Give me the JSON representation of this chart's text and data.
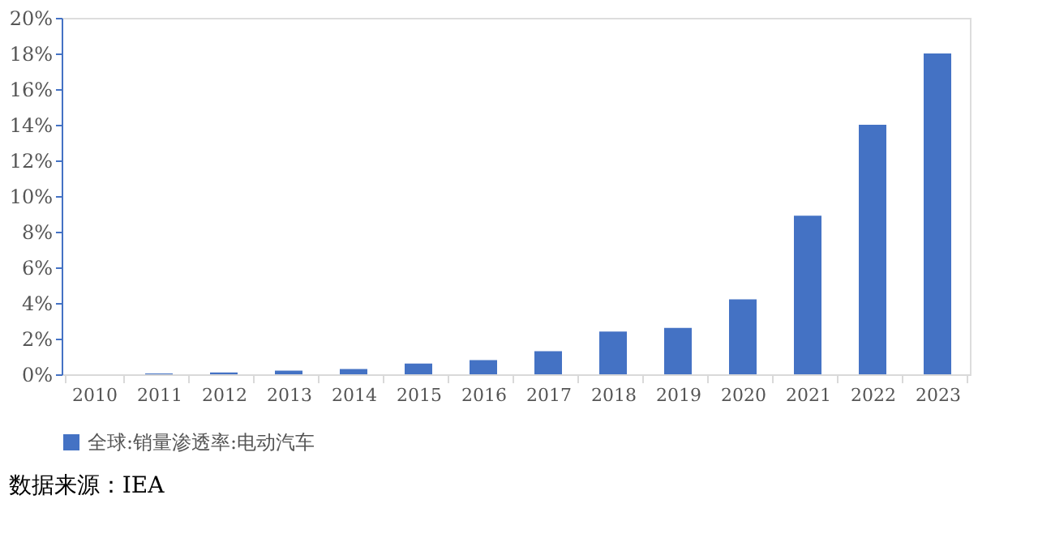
{
  "chart_data": {
    "type": "bar",
    "categories": [
      "2010",
      "2011",
      "2012",
      "2013",
      "2014",
      "2015",
      "2016",
      "2017",
      "2018",
      "2019",
      "2020",
      "2021",
      "2022",
      "2023"
    ],
    "series": [
      {
        "name": "全球:销量渗透率:电动汽车",
        "color": "#4472c4",
        "values": [
          0,
          0.05,
          0.1,
          0.2,
          0.3,
          0.6,
          0.8,
          1.3,
          2.4,
          2.6,
          4.2,
          8.9,
          14,
          18
        ]
      }
    ],
    "ylim": [
      0,
      20
    ],
    "yticks": [
      {
        "value": 0,
        "label": "0%"
      },
      {
        "value": 2,
        "label": "2%"
      },
      {
        "value": 4,
        "label": "4%"
      },
      {
        "value": 6,
        "label": "6%"
      },
      {
        "value": 8,
        "label": "8%"
      },
      {
        "value": 10,
        "label": "10%"
      },
      {
        "value": 12,
        "label": "12%"
      },
      {
        "value": 14,
        "label": "14%"
      },
      {
        "value": 16,
        "label": "16%"
      },
      {
        "value": 18,
        "label": "18%"
      },
      {
        "value": 20,
        "label": "20%"
      }
    ],
    "grid": false,
    "legend": "bottom",
    "annotations": [
      "数据来源：IEA"
    ]
  }
}
